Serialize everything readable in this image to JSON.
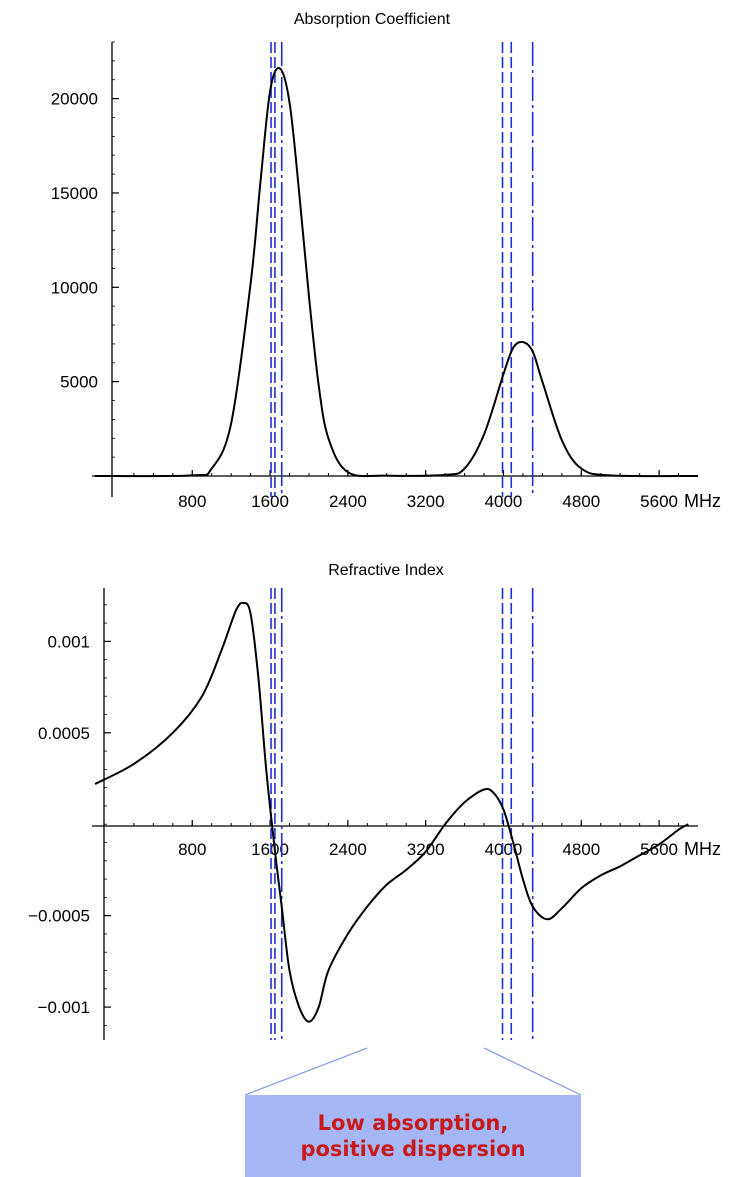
{
  "chart_data": [
    {
      "type": "line",
      "title": "Absorption Coefficient",
      "xlabel": "MHz",
      "ylabel": "",
      "xlim": [
        -200,
        6000
      ],
      "ylim": [
        0,
        23000
      ],
      "x_ticks": [
        800,
        1600,
        2400,
        3200,
        4000,
        4800,
        5600
      ],
      "y_ticks": [
        5000,
        10000,
        15000,
        20000
      ],
      "y_tick_labels": [
        "5000",
        "10000",
        "15000",
        "20000"
      ],
      "grid": false,
      "series": [
        {
          "color": "#000000",
          "points": [
            [
              -200,
              0
            ],
            [
              800,
              30
            ],
            [
              1000,
              400
            ],
            [
              1200,
              2800
            ],
            [
              1400,
              10200
            ],
            [
              1500,
              15500
            ],
            [
              1600,
              20400
            ],
            [
              1700,
              21600
            ],
            [
              1800,
              19800
            ],
            [
              1900,
              15000
            ],
            [
              2000,
              9500
            ],
            [
              2100,
              4800
            ],
            [
              2200,
              2000
            ],
            [
              2400,
              200
            ],
            [
              2800,
              20
            ],
            [
              3400,
              60
            ],
            [
              3600,
              400
            ],
            [
              3800,
              2200
            ],
            [
              4000,
              5400
            ],
            [
              4100,
              6800
            ],
            [
              4200,
              7100
            ],
            [
              4300,
              6600
            ],
            [
              4400,
              5000
            ],
            [
              4600,
              1900
            ],
            [
              4800,
              400
            ],
            [
              5100,
              30
            ],
            [
              6000,
              0
            ]
          ]
        }
      ],
      "vertical_lines": [
        {
          "x": 1610,
          "color": "#1f2fd8",
          "style": "dashed"
        },
        {
          "x": 1650,
          "color": "#1f2fd8",
          "style": "dashed"
        },
        {
          "x": 1720,
          "color": "#1f2fd8",
          "style": "dashdot"
        },
        {
          "x": 3990,
          "color": "#1f2fd8",
          "style": "dashed"
        },
        {
          "x": 4080,
          "color": "#1f2fd8",
          "style": "dashed"
        },
        {
          "x": 4300,
          "color": "#1f2fd8",
          "style": "dashdot"
        }
      ]
    },
    {
      "type": "line",
      "title": "Refractive Index",
      "xlabel": "MHz",
      "ylabel": "",
      "xlim": [
        -200,
        6000
      ],
      "ylim": [
        -0.00118,
        0.00127
      ],
      "x_ticks": [
        800,
        1600,
        2400,
        3200,
        4000,
        4800,
        5600
      ],
      "y_ticks": [
        -0.001,
        -0.0005,
        0.0005,
        0.001
      ],
      "y_tick_labels": [
        "−0.001",
        "−0.0005",
        "0.0005",
        "0.001"
      ],
      "grid": false,
      "series": [
        {
          "color": "#000000",
          "points": [
            [
              -200,
              0.00022
            ],
            [
              200,
              0.00033
            ],
            [
              600,
              0.0005
            ],
            [
              900,
              0.0007
            ],
            [
              1100,
              0.00095
            ],
            [
              1250,
              0.00117
            ],
            [
              1330,
              0.00121
            ],
            [
              1400,
              0.00115
            ],
            [
              1480,
              0.0008
            ],
            [
              1560,
              0.0003
            ],
            [
              1640,
              -0.0001
            ],
            [
              1720,
              -0.00045
            ],
            [
              1800,
              -0.0008
            ],
            [
              1900,
              -0.001
            ],
            [
              2000,
              -0.00108
            ],
            [
              2100,
              -0.001
            ],
            [
              2200,
              -0.0008
            ],
            [
              2400,
              -0.0006
            ],
            [
              2600,
              -0.00045
            ],
            [
              2800,
              -0.00033
            ],
            [
              3000,
              -0.00025
            ],
            [
              3200,
              -0.00015
            ],
            [
              3400,
              0.0
            ],
            [
              3600,
              0.00012
            ],
            [
              3800,
              0.00019
            ],
            [
              3900,
              0.00017
            ],
            [
              4000,
              8e-05
            ],
            [
              4100,
              -0.0001
            ],
            [
              4200,
              -0.0003
            ],
            [
              4300,
              -0.00045
            ],
            [
              4450,
              -0.00052
            ],
            [
              4600,
              -0.00046
            ],
            [
              4800,
              -0.00035
            ],
            [
              5000,
              -0.00028
            ],
            [
              5200,
              -0.00023
            ],
            [
              5400,
              -0.00017
            ],
            [
              5600,
              -0.00011
            ],
            [
              5800,
              -3e-05
            ],
            [
              5900,
              0.0
            ]
          ]
        }
      ],
      "vertical_lines": [
        {
          "x": 1610,
          "color": "#1f2fd8",
          "style": "dashed"
        },
        {
          "x": 1650,
          "color": "#1f2fd8",
          "style": "dashed"
        },
        {
          "x": 1720,
          "color": "#1f2fd8",
          "style": "dashdot"
        },
        {
          "x": 3990,
          "color": "#1f2fd8",
          "style": "dashed"
        },
        {
          "x": 4080,
          "color": "#1f2fd8",
          "style": "dashed"
        },
        {
          "x": 4300,
          "color": "#1f2fd8",
          "style": "dashdot"
        }
      ],
      "annotation": {
        "text_lines": [
          "Low absorption,",
          "positive dispersion"
        ],
        "box_color": "#a5b8f5",
        "text_color": "#c81a1a",
        "pointer_color": "#7b93e6",
        "pointer_targets_x": [
          2600,
          3800
        ]
      }
    }
  ]
}
